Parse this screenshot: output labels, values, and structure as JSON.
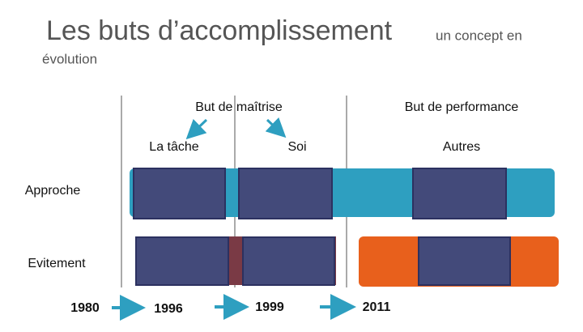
{
  "header": {
    "title": "Les buts d’accomplissement",
    "subtitle_part1": "un concept en",
    "subtitle_part2": "évolution"
  },
  "columns": {
    "mastery": "But de maîtrise",
    "performance": "But de performance"
  },
  "subcolumns": [
    "La tâche",
    "Soi",
    "Autres"
  ],
  "rows": [
    "Approche",
    "Evitement"
  ],
  "timeline": [
    "1980",
    "1996",
    "1999",
    "2011"
  ]
}
